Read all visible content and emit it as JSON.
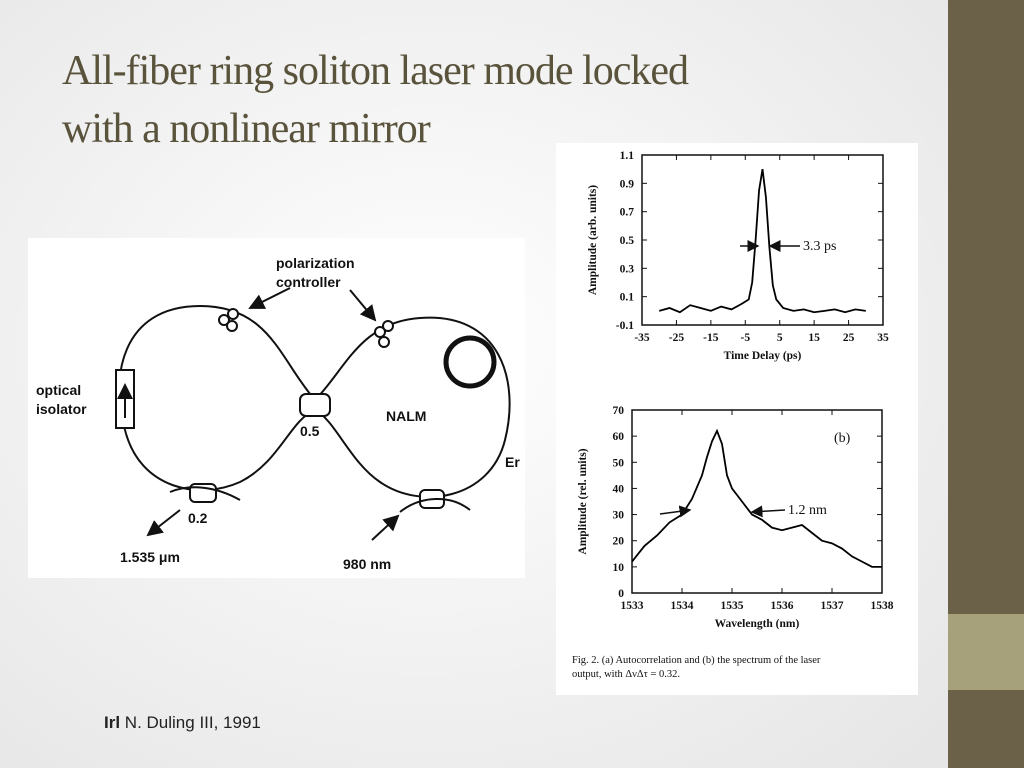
{
  "title": [
    "All-fiber ring soliton laser mode locked",
    "with a nonlinear mirror"
  ],
  "diagram": {
    "polarization_controller": [
      "polarization",
      "controller"
    ],
    "optical_isolator": [
      "optical",
      "isolator"
    ],
    "coupler_center": "0.5",
    "loop_label": "NALM",
    "fiber_label": "Er",
    "coupler_output": "0.2",
    "output_wavelength": "1.535 μm",
    "pump_wavelength": "980 nm"
  },
  "chart_data": [
    {
      "type": "line",
      "xlabel": "Time Delay (ps)",
      "ylabel": "Amplitude (arb. units)",
      "x": [
        -30,
        -27,
        -24,
        -21,
        -18,
        -15,
        -12,
        -9,
        -6,
        -4,
        -3,
        -2,
        -1,
        0,
        1,
        2,
        3,
        4,
        6,
        9,
        12,
        15,
        18,
        21,
        24,
        27,
        30
      ],
      "values": [
        0.0,
        0.02,
        -0.01,
        0.04,
        0.02,
        0.0,
        0.03,
        0.01,
        0.05,
        0.08,
        0.2,
        0.5,
        0.85,
        1.0,
        0.8,
        0.45,
        0.18,
        0.08,
        0.02,
        0.0,
        0.01,
        -0.01,
        0.0,
        0.01,
        -0.01,
        0.01,
        0.0
      ],
      "color": "#000000",
      "xlim": [
        -35,
        35
      ],
      "xticks": [
        -35,
        -25,
        -15,
        -5,
        5,
        15,
        25,
        35
      ],
      "ylim": [
        -0.1,
        1.1
      ],
      "yticks": [
        -0.1,
        0.1,
        0.3,
        0.5,
        0.7,
        0.9,
        1.1
      ],
      "annotations": [
        "3.3 ps"
      ]
    },
    {
      "type": "line",
      "xlabel": "Wavelength (nm)",
      "ylabel": "Amplitude (rel. units)",
      "x": [
        1533,
        1533.25,
        1533.5,
        1533.75,
        1534,
        1534.2,
        1534.4,
        1534.5,
        1534.6,
        1534.7,
        1534.8,
        1534.9,
        1535,
        1535.2,
        1535.4,
        1535.6,
        1535.8,
        1536,
        1536.2,
        1536.4,
        1536.6,
        1536.8,
        1537,
        1537.2,
        1537.4,
        1537.6,
        1537.8,
        1538
      ],
      "values": [
        12,
        18,
        22,
        27,
        30,
        36,
        45,
        52,
        58,
        62,
        57,
        45,
        40,
        35,
        30,
        28,
        25,
        24,
        25,
        26,
        23,
        20,
        19,
        17,
        14,
        12,
        10,
        10
      ],
      "color": "#000000",
      "xlim": [
        1533,
        1538
      ],
      "xticks": [
        1533,
        1534,
        1535,
        1536,
        1537,
        1538
      ],
      "ylim": [
        0,
        70
      ],
      "yticks": [
        0,
        10,
        20,
        30,
        40,
        50,
        60,
        70
      ],
      "annotations": [
        "(b)",
        "1.2 nm"
      ]
    }
  ],
  "figure_caption": [
    "Fig. 2.    (a) Autocorrelation and (b) the spectrum of the laser",
    "output, with ΔνΔτ = 0.32."
  ],
  "citation": {
    "first": "Irl",
    "rest": "N. Duling III, 1991"
  }
}
